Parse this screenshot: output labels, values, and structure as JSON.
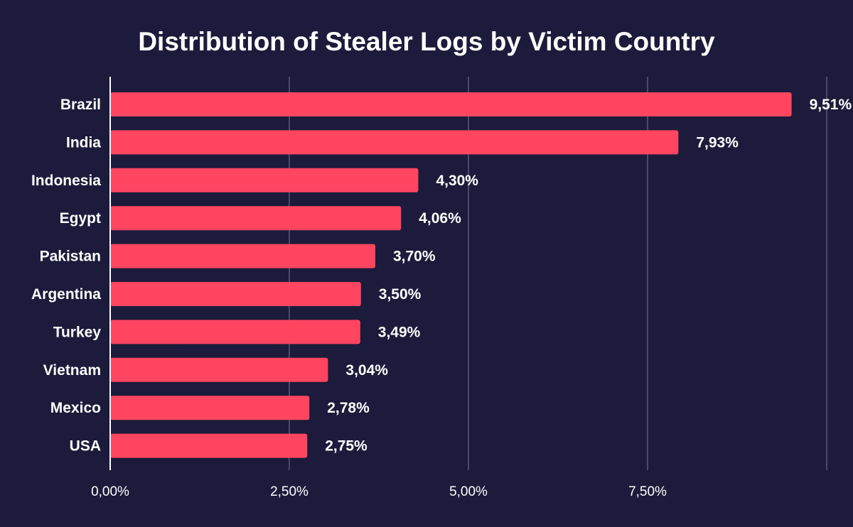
{
  "chart_data": {
    "type": "bar",
    "orientation": "horizontal",
    "title": "Distribution of Stealer Logs by Victim Country",
    "xlabel": "",
    "ylabel": "",
    "categories": [
      "Brazil",
      "India",
      "Indonesia",
      "Egypt",
      "Pakistan",
      "Argentina",
      "Turkey",
      "Vietnam",
      "Mexico",
      "USA"
    ],
    "values": [
      9.51,
      7.93,
      4.3,
      4.06,
      3.7,
      3.5,
      3.49,
      3.04,
      2.78,
      2.75
    ],
    "value_labels": [
      "9,51%",
      "7,93%",
      "4,30%",
      "4,06%",
      "3,70%",
      "3,50%",
      "3,49%",
      "3,04%",
      "2,78%",
      "2,75%"
    ],
    "xlim": [
      0,
      10
    ],
    "xticks": [
      0,
      2.5,
      5,
      7.5,
      10
    ],
    "xtick_labels": [
      "0,00%",
      "2,50%",
      "5,00%",
      "7,50%",
      ""
    ],
    "grid": "vertical",
    "legend": "none",
    "colors": {
      "background": "#1c1b3b",
      "bar": "#ff4560",
      "grid": "#5a5a78",
      "axis": "#ffffff",
      "text": "#ffffff"
    }
  }
}
